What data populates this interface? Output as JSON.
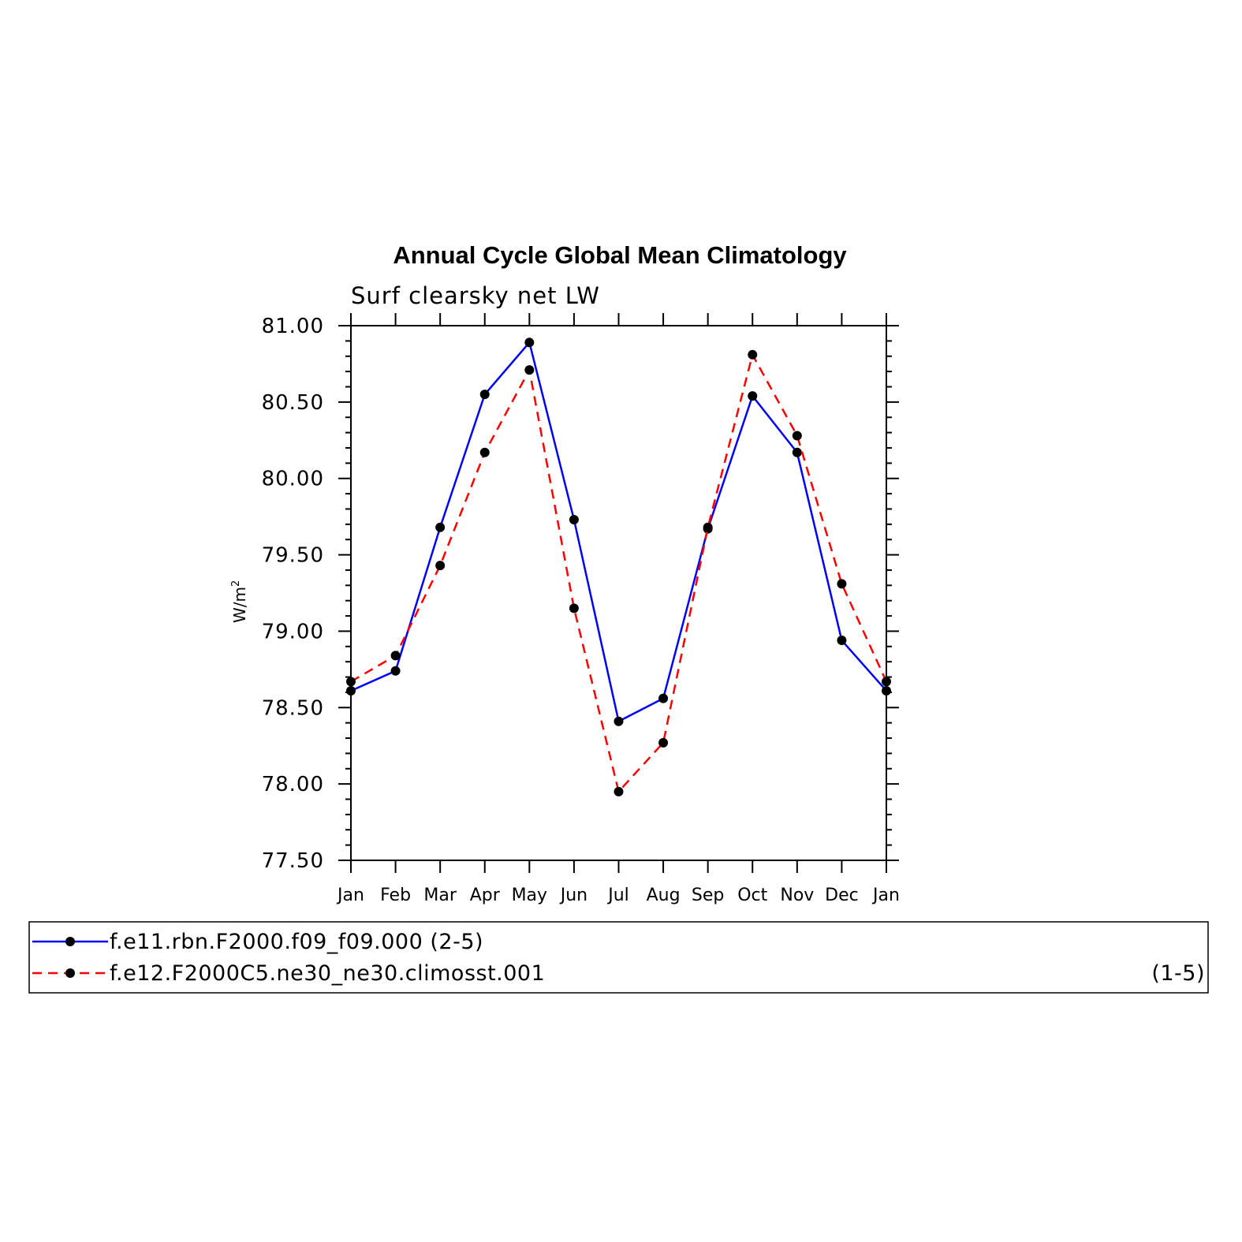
{
  "chart_data": {
    "type": "line",
    "title": "Annual Cycle Global Mean Climatology",
    "subtitle": "Surf clearsky net LW",
    "xlabel": "",
    "ylabel": "W/m",
    "ylabel_superscript": "2",
    "categories": [
      "Jan",
      "Feb",
      "Mar",
      "Apr",
      "May",
      "Jun",
      "Jul",
      "Aug",
      "Sep",
      "Oct",
      "Nov",
      "Dec",
      "Jan"
    ],
    "ylim": [
      77.5,
      81.0
    ],
    "yticks": [
      "77.50",
      "78.00",
      "78.50",
      "79.00",
      "79.50",
      "80.00",
      "80.50",
      "81.00"
    ],
    "grid": false,
    "legend_position": "bottom",
    "series": [
      {
        "name": "f.e11.rbn.F2000.f09_f09.000",
        "suffix": "(2-5)",
        "color": "#0000ff",
        "dashed": false,
        "values": [
          78.61,
          78.74,
          79.68,
          80.55,
          80.89,
          79.73,
          78.41,
          78.56,
          79.67,
          80.54,
          80.17,
          78.94,
          78.61
        ]
      },
      {
        "name": "f.e12.F2000C5.ne30_ne30.climosst.001",
        "suffix": "(1-5)",
        "color": "#ff0000",
        "dashed": true,
        "values": [
          78.67,
          78.84,
          79.43,
          80.17,
          80.71,
          79.15,
          77.95,
          78.27,
          79.68,
          80.81,
          80.28,
          79.31,
          78.67
        ]
      }
    ]
  }
}
